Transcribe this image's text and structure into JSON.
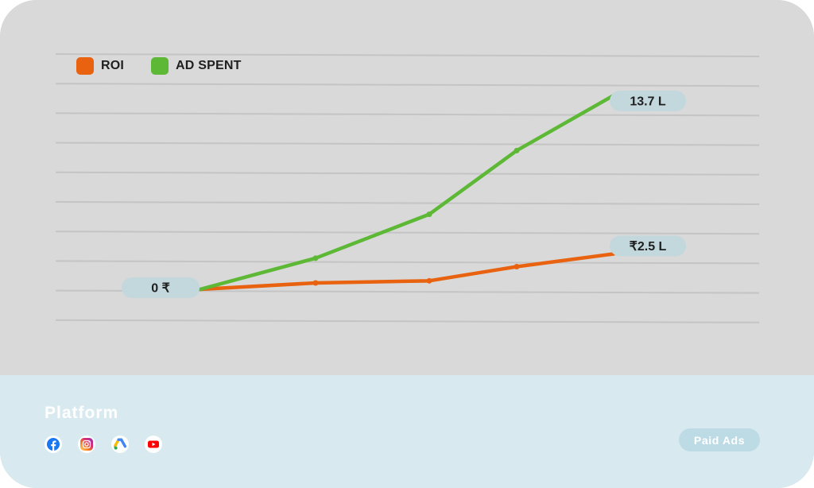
{
  "chart_data": {
    "type": "line",
    "x": [
      0,
      1,
      2,
      3,
      4
    ],
    "series": [
      {
        "name": "ROI",
        "color": "#e8620f",
        "values": [
          0,
          0.45,
          0.6,
          1.6,
          2.5
        ]
      },
      {
        "name": "AD SPENT",
        "color": "#5db935",
        "values": [
          0,
          2.2,
          5.3,
          9.8,
          13.7
        ]
      }
    ],
    "ylim": [
      0,
      15
    ],
    "grid": true,
    "legend": "top-left",
    "annotations": [
      "0 ₹",
      "₹2.5 L",
      "13.7 L"
    ]
  },
  "legend": {
    "items": [
      {
        "label": "ROI",
        "color": "#e8620f"
      },
      {
        "label": "AD SPENT",
        "color": "#5db935"
      }
    ]
  },
  "footer": {
    "title": "Platform",
    "icons": [
      "facebook-icon",
      "instagram-icon",
      "google-ads-icon",
      "youtube-icon"
    ],
    "tag_label": "Paid Ads"
  }
}
